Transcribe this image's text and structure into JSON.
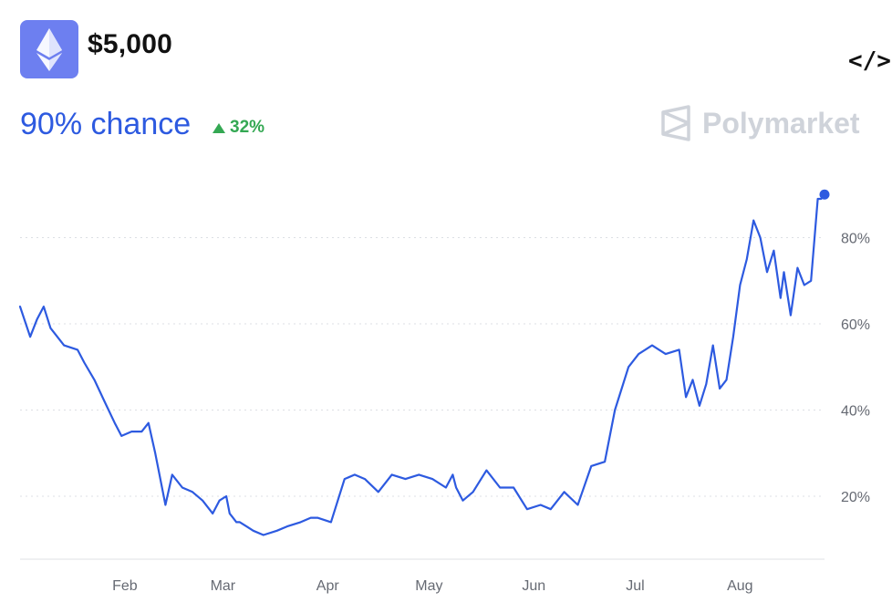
{
  "header": {
    "title": "$5,000",
    "chance": "90% chance",
    "change": "32%",
    "brand": "Polymarket",
    "embed_icon": "</>",
    "logo_icon": "ethereum-icon"
  },
  "colors": {
    "line": "#2d5ae0",
    "logo_bg": "#6d7ff0",
    "up": "#34a853",
    "brand": "#cfd3da",
    "grid": "#dcdfe4"
  },
  "chart_data": {
    "type": "line",
    "title": "",
    "xlabel": "",
    "ylabel": "",
    "ylim": [
      5,
      95
    ],
    "y_ticks": [
      20,
      40,
      60,
      80
    ],
    "y_tick_labels": [
      "20%",
      "40%",
      "60%",
      "80%"
    ],
    "x_ticks": [
      "Feb",
      "Mar",
      "Apr",
      "May",
      "Jun",
      "Jul",
      "Aug"
    ],
    "grid": true,
    "series": [
      {
        "name": "",
        "x": [
          "2024-01-01",
          "2024-01-04",
          "2024-01-06",
          "2024-01-08",
          "2024-01-10",
          "2024-01-14",
          "2024-01-18",
          "2024-01-20",
          "2024-01-23",
          "2024-01-26",
          "2024-01-29",
          "2024-01-31",
          "2024-02-03",
          "2024-02-06",
          "2024-02-08",
          "2024-02-10",
          "2024-02-13",
          "2024-02-15",
          "2024-02-18",
          "2024-02-21",
          "2024-02-24",
          "2024-02-27",
          "2024-02-29",
          "2024-03-02",
          "2024-03-03",
          "2024-03-05",
          "2024-03-06",
          "2024-03-08",
          "2024-03-10",
          "2024-03-13",
          "2024-03-17",
          "2024-03-20",
          "2024-03-24",
          "2024-03-27",
          "2024-03-29",
          "2024-04-02",
          "2024-04-06",
          "2024-04-09",
          "2024-04-12",
          "2024-04-16",
          "2024-04-20",
          "2024-04-24",
          "2024-04-28",
          "2024-05-02",
          "2024-05-06",
          "2024-05-08",
          "2024-05-09",
          "2024-05-11",
          "2024-05-14",
          "2024-05-18",
          "2024-05-22",
          "2024-05-26",
          "2024-05-30",
          "2024-06-03",
          "2024-06-06",
          "2024-06-10",
          "2024-06-14",
          "2024-06-18",
          "2024-06-22",
          "2024-06-25",
          "2024-06-29",
          "2024-07-02",
          "2024-07-06",
          "2024-07-10",
          "2024-07-14",
          "2024-07-16",
          "2024-07-18",
          "2024-07-20",
          "2024-07-22",
          "2024-07-24",
          "2024-07-26",
          "2024-07-28",
          "2024-07-30",
          "2024-08-01",
          "2024-08-03",
          "2024-08-05",
          "2024-08-07",
          "2024-08-09",
          "2024-08-11",
          "2024-08-13",
          "2024-08-14",
          "2024-08-16",
          "2024-08-18",
          "2024-08-20",
          "2024-08-22",
          "2024-08-24",
          "2024-08-25",
          "2024-08-26"
        ],
        "values": [
          64,
          57,
          61,
          64,
          59,
          55,
          54,
          51,
          47,
          42,
          37,
          34,
          35,
          35,
          37,
          30,
          18,
          25,
          22,
          21,
          19,
          16,
          19,
          20,
          16,
          14,
          14,
          13,
          12,
          11,
          12,
          13,
          14,
          15,
          15,
          14,
          24,
          25,
          24,
          21,
          25,
          24,
          25,
          24,
          22,
          25,
          22,
          19,
          21,
          26,
          22,
          22,
          17,
          18,
          17,
          21,
          18,
          27,
          28,
          40,
          50,
          53,
          55,
          53,
          54,
          43,
          47,
          41,
          46,
          55,
          45,
          47,
          57,
          69,
          75,
          84,
          80,
          72,
          77,
          66,
          72,
          62,
          73,
          69,
          70,
          89,
          89,
          90
        ]
      }
    ]
  }
}
